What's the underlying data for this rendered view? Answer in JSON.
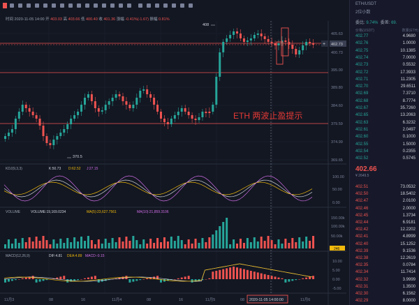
{
  "topbar": {
    "title_prefix": "时间",
    "date": "2020-11-05 14:00",
    "open_label": "开",
    "open": "403.03",
    "high_label": "高",
    "high": "403.66",
    "low_label": "低",
    "low": "400.40",
    "close_label": "收",
    "close": "401.36",
    "change_label": "涨幅",
    "change": "-0.41%(-1.67)",
    "amp_label": "振幅",
    "amp": "0.81%"
  },
  "price_axis": {
    "ticks": [
      "405.63",
      "400.73",
      "395.00",
      "389.80",
      "384.60",
      "379.59",
      "374.99",
      "369.65"
    ],
    "current": "402.73",
    "current_small": "402.73"
  },
  "markers": {
    "high_label": "408",
    "low_label": "370.5"
  },
  "annotation": "ETH  两波止盈提示",
  "kdj": {
    "title": "KDJ(9,3,3)",
    "k": "K:50.73",
    "d": "D:62.52",
    "j": "J:27.15",
    "ticks": [
      "100.00",
      "50.00",
      "0.00"
    ]
  },
  "volume": {
    "title": "VOLUME",
    "value": "VOLUME:19,169.0234",
    "ma5": "MA(5):23,627.7561",
    "ma10": "MA(10):21,859.3106",
    "ticks": [
      "150.00k",
      "100.00k",
      "50.00k"
    ],
    "badge": "246"
  },
  "macd": {
    "title": "MACD(12,26,9)",
    "dif": "DIF:4.81",
    "dea": "DEA:4.89",
    "macd": "MACD:-0.15",
    "ticks": [
      "10.00",
      "5.00",
      "0.00",
      "-5.00"
    ]
  },
  "time_axis": {
    "labels": [
      "11月3",
      "08",
      "16",
      "11月4",
      "08",
      "16",
      "11月5",
      "08",
      "11月6"
    ],
    "cursor": "2020-11-05 14:00:00"
  },
  "orderbook": {
    "top_label": "ETH/USDT",
    "precision": "2位小数",
    "stat1_label": "委比",
    "stat1": "9.74%",
    "stat2_label": "委差",
    "stat2": "69.",
    "head_price": "价格(USDT)",
    "head_qty": "数量(ETH)",
    "asks": [
      {
        "p": "402.77",
        "q": "4.9680"
      },
      {
        "p": "402.76",
        "q": "1.0000"
      },
      {
        "p": "402.75",
        "q": "10.1385"
      },
      {
        "p": "402.74",
        "q": "7.0000"
      },
      {
        "p": "402.73",
        "q": "0.5532"
      },
      {
        "p": "402.72",
        "q": "17.3933"
      },
      {
        "p": "402.71",
        "q": "11.2305"
      },
      {
        "p": "402.70",
        "q": "29.6511"
      },
      {
        "p": "402.69",
        "q": "7.3710"
      },
      {
        "p": "402.68",
        "q": "8.7774"
      },
      {
        "p": "402.67",
        "q": "35.7260"
      },
      {
        "p": "402.65",
        "q": "13.2063"
      },
      {
        "p": "402.63",
        "q": "6.3232"
      },
      {
        "p": "402.61",
        "q": "2.0497"
      },
      {
        "p": "402.60",
        "q": "0.1000"
      },
      {
        "p": "402.55",
        "q": "1.5000"
      },
      {
        "p": "402.54",
        "q": "0.2355"
      },
      {
        "p": "402.52",
        "q": "0.5745"
      }
    ],
    "mid_price": "402.66",
    "mid_sub": "¥ 2649.5",
    "bids": [
      {
        "p": "402.51",
        "q": "73.0532"
      },
      {
        "p": "402.50",
        "q": "18.5402"
      },
      {
        "p": "402.47",
        "q": "2.0100"
      },
      {
        "p": "402.46",
        "q": "2.0000"
      },
      {
        "p": "402.45",
        "q": "1.3734"
      },
      {
        "p": "402.44",
        "q": "6.9181"
      },
      {
        "p": "402.42",
        "q": "12.2202"
      },
      {
        "p": "402.41",
        "q": "4.8999"
      },
      {
        "p": "402.40",
        "q": "15.1252"
      },
      {
        "p": "402.39",
        "q": "9.1536"
      },
      {
        "p": "402.38",
        "q": "12.2619"
      },
      {
        "p": "402.35",
        "q": "0.0784"
      },
      {
        "p": "402.34",
        "q": "11.7414"
      },
      {
        "p": "402.32",
        "q": "3.9999"
      },
      {
        "p": "402.31",
        "q": "1.3500"
      },
      {
        "p": "402.30",
        "q": "6.1562"
      },
      {
        "p": "402.29",
        "q": "8.0000"
      }
    ]
  },
  "colors": {
    "up": "#26a69a",
    "down": "#ef5350",
    "bg": "#131722",
    "annotation": "#e53935"
  }
}
